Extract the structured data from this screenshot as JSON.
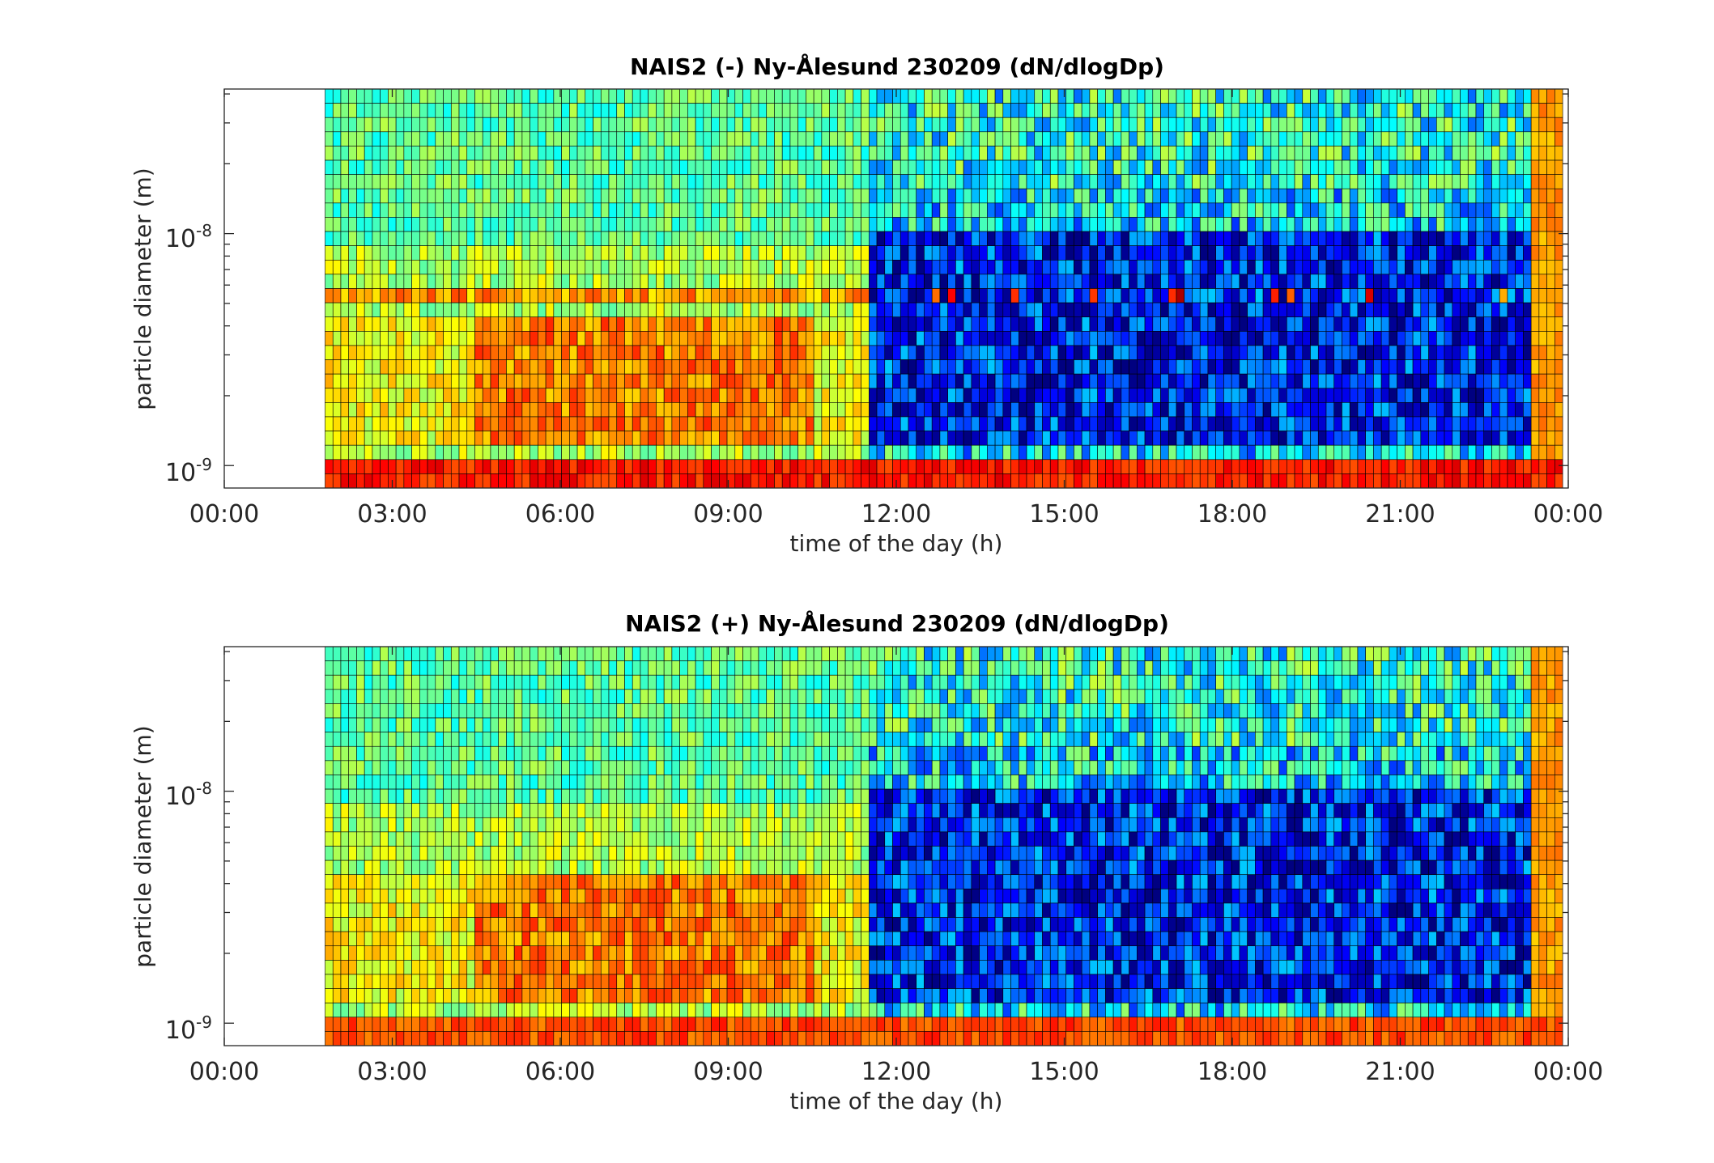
{
  "chart_data": [
    {
      "type": "heatmap",
      "title": "NAIS2 (-) Ny-Ålesund 230209 (dN/dlogDp)",
      "xlabel": "time of the day (h)",
      "ylabel": "particle diameter (m)",
      "xlim_hours": [
        0,
        24
      ],
      "ylim_m": [
        8e-10,
        4.2e-08
      ],
      "y_scale": "log",
      "x_ticks": [
        "00:00",
        "03:00",
        "06:00",
        "09:00",
        "12:00",
        "15:00",
        "18:00",
        "21:00",
        "00:00"
      ],
      "y_ticks": [
        {
          "base": "10",
          "exp": "-8",
          "value": 1e-08
        },
        {
          "base": "10",
          "exp": "-9",
          "value": 1e-09
        }
      ],
      "data_start_hour": 1.8,
      "data_end_hour": 23.9,
      "colormap": "jet",
      "grid": "cell edges drawn in black",
      "legend": "none",
      "description_regions": {
        "smallest_bins_level": 0.85,
        "morning_mid_level": 0.75,
        "afternoon_mid_level": 0.15
      }
    },
    {
      "type": "heatmap",
      "title": "NAIS2 (+) Ny-Ålesund 230209 (dN/dlogDp)",
      "xlabel": "time of the day (h)",
      "ylabel": "particle diameter (m)",
      "xlim_hours": [
        0,
        24
      ],
      "ylim_m": [
        8e-10,
        4.2e-08
      ],
      "y_scale": "log",
      "x_ticks": [
        "00:00",
        "03:00",
        "06:00",
        "09:00",
        "12:00",
        "15:00",
        "18:00",
        "21:00",
        "00:00"
      ],
      "y_ticks": [
        {
          "base": "10",
          "exp": "-8",
          "value": 1e-08
        },
        {
          "base": "10",
          "exp": "-9",
          "value": 1e-09
        }
      ],
      "data_start_hour": 1.8,
      "data_end_hour": 23.9,
      "colormap": "jet",
      "grid": "cell edges drawn in black",
      "legend": "none",
      "description_regions": {
        "smallest_bins_level": 0.8,
        "morning_mid_level": 0.75,
        "afternoon_mid_level": 0.15
      }
    }
  ]
}
